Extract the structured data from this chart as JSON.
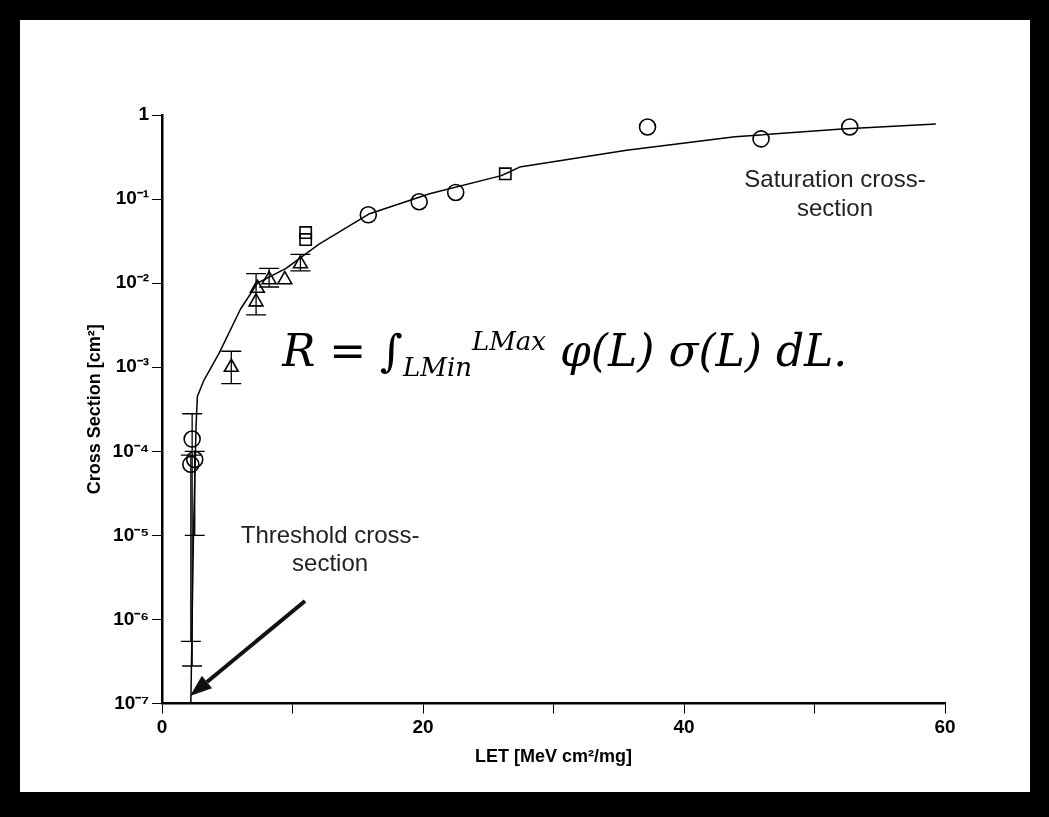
{
  "chart_data": {
    "type": "scatter",
    "xlabel": "LET [MeV cm²/mg]",
    "ylabel": "Cross Section [cm²]",
    "log": "y",
    "xlim": [
      0,
      60
    ],
    "xticks": [
      0,
      {
        "value": 10,
        "label": null
      },
      20,
      {
        "value": 30,
        "label": null
      },
      40,
      {
        "value": 50,
        "label": null
      },
      60
    ],
    "ylim": [
      1e-07,
      1
    ],
    "yticks": [
      {
        "value": 1e-07,
        "label": "10⁻⁷"
      },
      {
        "value": 1e-06,
        "label": "10⁻⁶"
      },
      {
        "value": 1e-05,
        "label": "10⁻⁵"
      },
      {
        "value": 0.0001,
        "label": "10⁻⁴"
      },
      {
        "value": 0.001,
        "label": "10⁻³"
      },
      {
        "value": 0.01,
        "label": "10⁻²"
      },
      {
        "value": 0.1,
        "label": "10⁻¹"
      },
      1
    ],
    "grid": false,
    "legend": false,
    "series": [
      {
        "color": "#000000",
        "marker": "circle",
        "x": [
          2.3,
          2.2,
          2.5,
          15.8,
          19.7,
          22.5,
          37.2,
          45.9,
          52.7
        ],
        "values": [
          0.00014,
          7e-05,
          8e-05,
          0.065,
          0.093,
          0.12,
          0.72,
          0.52,
          0.72
        ],
        "errors": [
          [
            2.8e-07,
            0.00028
          ],
          [
            5.5e-07,
            9e-05
          ],
          [
            1e-05,
            0.0001
          ],
          null,
          null,
          null,
          null,
          null,
          null
        ]
      },
      {
        "color": "#000000",
        "marker": "square",
        "x": [
          11.0,
          11.0,
          26.3
        ],
        "values": [
          0.033,
          0.04,
          0.2
        ]
      },
      {
        "color": "#000000",
        "marker": "triangle",
        "x": [
          5.3,
          7.2,
          7.3,
          8.2,
          9.4,
          10.6
        ],
        "values": [
          0.001,
          0.006,
          0.0087,
          0.011,
          0.011,
          0.017
        ],
        "errors": [
          [
            0.00064,
            0.00155
          ],
          [
            0.0042,
            0.013
          ],
          null,
          [
            0.009,
            0.015
          ],
          null,
          [
            0.014,
            0.022
          ]
        ]
      },
      {
        "type": "line",
        "color": "#000000",
        "marker": "none",
        "line_style": "solid",
        "x": [
          2.2,
          2.4,
          2.6,
          2.7,
          3.2,
          4.4,
          6.0,
          7.3,
          9.5,
          12.0,
          15.9,
          20.5,
          26.0,
          27.4,
          35.6,
          43.9,
          52.1,
          59.3
        ],
        "values": [
          1e-07,
          1e-05,
          0.0002,
          0.00045,
          0.0007,
          0.0015,
          0.0049,
          0.01,
          0.015,
          0.029,
          0.067,
          0.116,
          0.19,
          0.24,
          0.38,
          0.55,
          0.68,
          0.78
        ]
      }
    ],
    "annotations": [
      "Saturation cross-section",
      "R = ∫$_{LMin}$$^{LMax}$ φ(L) σ(L) dL.",
      "Threshold cross-section"
    ]
  }
}
